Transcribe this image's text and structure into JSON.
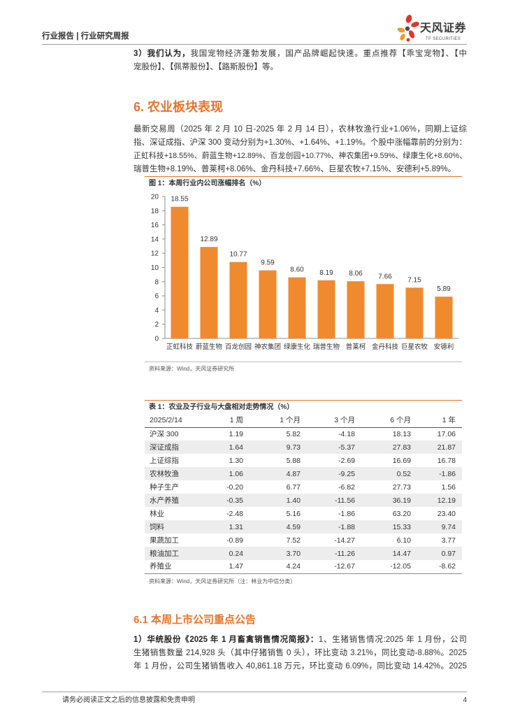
{
  "header": {
    "title": "行业报告 | 行业研究周报",
    "logo_name": "天风证券",
    "logo_sub": "TF SECURITIES"
  },
  "intro": {
    "lead": "3）我们认为，",
    "lines": [
      "我国宠物经济蓬勃发展，国产品牌崛起快速。重点推荐【乖宝宠物】、【中",
      "宠股份】、【佩蒂股份】、【路斯股份】等。"
    ]
  },
  "section_6": {
    "heading": "6. 农业板块表现",
    "lines": [
      "最新交易周（2025 年 2 月 10 日-2025 年 2 月 14 日），农林牧渔行业+1.06%，同期上证综",
      "指、深证成指、沪深 300 变动分别为+1.30%、+1.64%、+1.19%。个股中涨幅靠前的分别为：",
      "正虹科技+18.55%、蔚蓝生物+12.89%、百龙创园+10.77%、神农集团+9.59%、绿康生化+8.60%、",
      "瑞普生物+8.19%、普莱柯+8.06%、金丹科技+7.66%、巨星农牧+7.15%、安德利+5.89%。"
    ]
  },
  "chart_data": {
    "type": "bar",
    "title": "图 1：本周行业内公司涨幅排名（%）",
    "categories": [
      "正虹科技",
      "蔚蓝生物",
      "百龙创园",
      "神农集团",
      "绿康生化",
      "瑞普生物",
      "普莱柯",
      "金丹科技",
      "巨星农牧",
      "安德利"
    ],
    "values": [
      18.55,
      12.89,
      10.77,
      9.59,
      8.6,
      8.19,
      8.06,
      7.66,
      7.15,
      5.89
    ],
    "ylim": [
      0,
      20
    ],
    "ytick_step": 2,
    "xlabel": "",
    "ylabel": "",
    "grid": false,
    "legend": "none",
    "data_labels": true,
    "source": "资料来源：Wind，天风证券研究所"
  },
  "table1": {
    "title": "表 1：农业及子行业与大盘相对走势情况（%）",
    "columns": [
      "2025/2/14",
      "1 周",
      "1 个月",
      "3 个月",
      "6 个月",
      "1 年"
    ],
    "rows": [
      [
        "沪深 300",
        "1.19",
        "5.82",
        "-4.18",
        "18.13",
        "17.06"
      ],
      [
        "深证成指",
        "1.64",
        "9.73",
        "-5.37",
        "27.83",
        "21.87"
      ],
      [
        "上证综指",
        "1.30",
        "5.88",
        "-2.69",
        "16.69",
        "16.78"
      ],
      [
        "农林牧渔",
        "1.06",
        "4.87",
        "-9.25",
        "0.52",
        "-1.86"
      ],
      [
        "种子生产",
        "-0.20",
        "6.77",
        "-6.82",
        "27.73",
        "1.56"
      ],
      [
        "水产养殖",
        "-0.35",
        "1.40",
        "-11.56",
        "36.19",
        "12.19"
      ],
      [
        "林业",
        "-2.48",
        "5.16",
        "-1.86",
        "63.20",
        "23.40"
      ],
      [
        "饲料",
        "1.31",
        "4.59",
        "-1.88",
        "15.33",
        "9.74"
      ],
      [
        "果蔬加工",
        "-0.89",
        "7.52",
        "-14.27",
        "6.10",
        "3.77"
      ],
      [
        "粮油加工",
        "0.24",
        "3.70",
        "-11.26",
        "14.47",
        "0.97"
      ],
      [
        "养殖业",
        "1.47",
        "4.24",
        "-12.67",
        "-12.05",
        "-8.62"
      ]
    ],
    "source": "资料来源：Wind，天风证券研究所（注：林业为中信分类）"
  },
  "section_6_1": {
    "heading": "6.1 本周上市公司重点公告",
    "lead": "1）华统股份《2025 年 1 月畜禽销售情况简报》：",
    "lines": [
      "1、生猪销售情况:2025 年 1 月份，公司",
      "生猪销售数量 214,928 头（其中仔猪销售 0 头），环比变动 3.21%，同比变动-8.88%。2025",
      "年 1 月份，公司生猪销售收入 40,861.18 万元，环比变动 6.09%，同比变动 14.42%。2025"
    ]
  },
  "footer": {
    "disclaimer": "请务必阅读正文之后的信息披露和免责申明",
    "page_number": "4"
  },
  "colors": {
    "accent": "#E8742C",
    "bar": "#F08A2E",
    "row_shade": "#EDEDED",
    "rule": "#A0A0A0",
    "logo_red": "#E5322D",
    "logo_orange": "#F39A1E",
    "logo_dark": "#4A4A4A"
  }
}
